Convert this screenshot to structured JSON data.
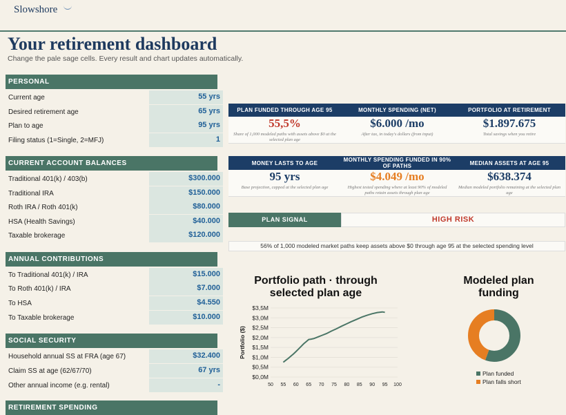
{
  "brand": "Slowshore",
  "page_title": "Your retirement dashboard",
  "subtitle": "Change the pale sage cells. Every result and chart updates automatically.",
  "sections": {
    "personal": {
      "title": "PERSONAL",
      "rows": [
        {
          "label": "Current age",
          "value": "55 yrs"
        },
        {
          "label": "Desired retirement age",
          "value": "65 yrs"
        },
        {
          "label": "Plan to age",
          "value": "95 yrs"
        },
        {
          "label": "Filing status (1=Single, 2=MFJ)",
          "value": "1"
        }
      ]
    },
    "balances": {
      "title": "CURRENT ACCOUNT BALANCES",
      "rows": [
        {
          "label": "Traditional 401(k) / 403(b)",
          "value": "$300.000"
        },
        {
          "label": "Traditional IRA",
          "value": "$150.000"
        },
        {
          "label": "Roth IRA / Roth 401(k)",
          "value": "$80.000"
        },
        {
          "label": "HSA (Health Savings)",
          "value": "$40.000"
        },
        {
          "label": "Taxable brokerage",
          "value": "$120.000"
        }
      ]
    },
    "contributions": {
      "title": "ANNUAL CONTRIBUTIONS",
      "rows": [
        {
          "label": "To Traditional 401(k) / IRA",
          "value": "$15.000"
        },
        {
          "label": "To Roth 401(k) / IRA",
          "value": "$7.000"
        },
        {
          "label": "To HSA",
          "value": "$4.550"
        },
        {
          "label": "To Taxable brokerage",
          "value": "$10.000"
        }
      ]
    },
    "social": {
      "title": "SOCIAL SECURITY",
      "rows": [
        {
          "label": "Household annual SS at FRA (age 67)",
          "value": "$32.400"
        },
        {
          "label": "Claim SS at age (62/67/70)",
          "value": "67 yrs"
        },
        {
          "label": "Other annual income (e.g. rental)",
          "value": "-"
        }
      ]
    },
    "spending": {
      "title": "RETIREMENT SPENDING"
    }
  },
  "cards": [
    {
      "header": "PLAN FUNDED THROUGH AGE 95",
      "value": "55,5%",
      "note": "Share of 1,000 modeled paths with assets above $0 at the selected plan age"
    },
    {
      "header": "MONTHLY SPENDING (NET)",
      "value": "$6.000 /mo",
      "note": "After tax, in today's dollars (from input)"
    },
    {
      "header": "PORTFOLIO AT RETIREMENT",
      "value": "$1.897.675",
      "note": "Total savings when you retire"
    },
    {
      "header": "MONEY LASTS TO AGE",
      "value": "95 yrs",
      "note": "Base projection, capped at the selected plan age"
    },
    {
      "header": "MONTHLY SPENDING FUNDED IN 90% OF PATHS",
      "value": "$4.049 /mo",
      "note": "Highest tested spending where at least 90% of modeled paths retain assets through plan age"
    },
    {
      "header": "MEDIAN ASSETS AT AGE 95",
      "value": "$638.374",
      "note": "Median modeled portfolio remaining at the selected plan age"
    }
  ],
  "signal": {
    "label": "PLAN SIGNAL",
    "value": "HIGH RISK",
    "note": "56% of 1,000 modeled market paths keep assets above $0 through age 95 at the selected spending level"
  },
  "colors": {
    "navy": "#1c3d66",
    "sage": "#4a7566",
    "risk_red": "#c0392b",
    "orange": "#e67e22"
  },
  "chart_data": [
    {
      "type": "line",
      "title": "Portfolio path · through selected plan age",
      "xlabel": "",
      "ylabel": "Portfolio ($)",
      "xlim": [
        50,
        100
      ],
      "ylim": [
        0,
        3.5
      ],
      "x_ticks": [
        "50",
        "55",
        "60",
        "65",
        "70",
        "75",
        "80",
        "85",
        "90",
        "95",
        "100"
      ],
      "y_ticks": [
        "$0,0M",
        "$0,5M",
        "$1,0M",
        "$1,5M",
        "$2,0M",
        "$2,5M",
        "$3,0M",
        "$3,5M"
      ],
      "grid": true,
      "series": [
        {
          "name": "",
          "color": "#4a7566",
          "x": [
            55,
            56,
            57,
            58,
            59,
            60,
            61,
            62,
            63,
            64,
            65,
            66,
            67,
            68,
            69,
            70,
            72,
            74,
            76,
            78,
            80,
            82,
            84,
            86,
            88,
            90,
            92,
            94,
            95
          ],
          "y": [
            0.75,
            0.85,
            0.95,
            1.06,
            1.17,
            1.29,
            1.42,
            1.55,
            1.68,
            1.79,
            1.9,
            1.92,
            1.95,
            2.0,
            2.05,
            2.1,
            2.2,
            2.33,
            2.45,
            2.58,
            2.7,
            2.82,
            2.93,
            3.04,
            3.13,
            3.21,
            3.27,
            3.3,
            3.28
          ]
        }
      ]
    },
    {
      "type": "pie",
      "title": "Modeled plan funding",
      "labels": [
        "Plan funded",
        "Plan falls short"
      ],
      "values": [
        55.5,
        44.5
      ],
      "colors": [
        "#4a7566",
        "#e67e22"
      ],
      "legend": "bottom"
    }
  ]
}
